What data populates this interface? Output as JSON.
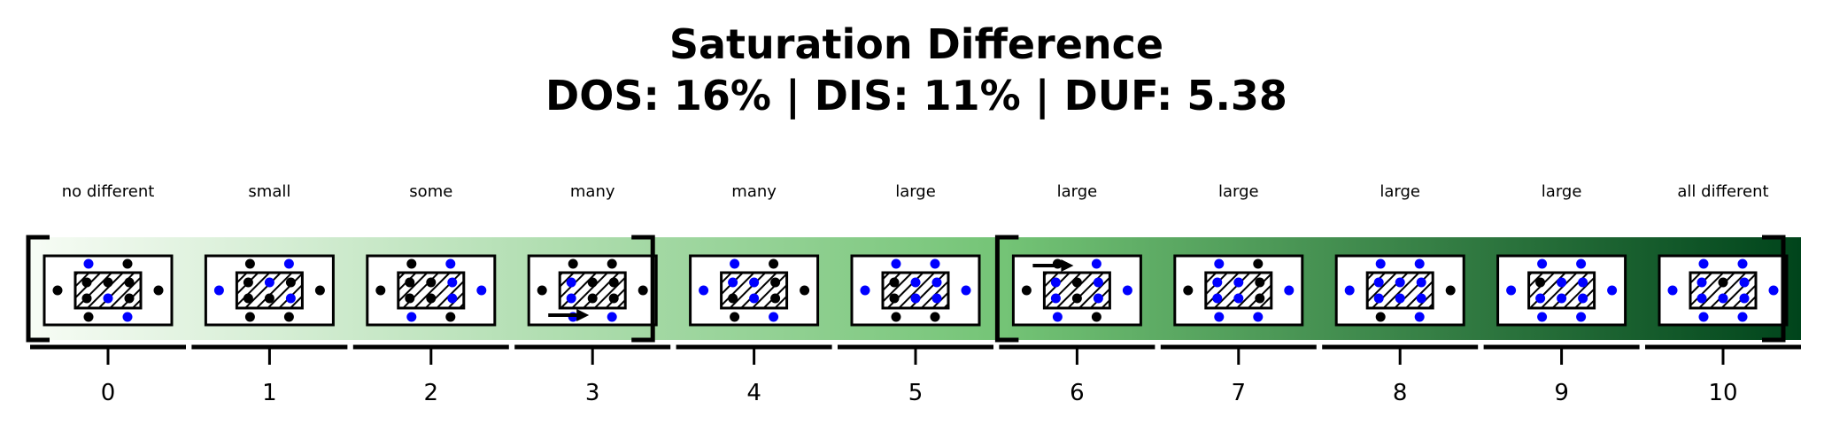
{
  "title": {
    "line1": "Saturation Difference",
    "line2": "DOS: 16% | DIS: 11% | DUF: 5.38"
  },
  "colors": {
    "gradient_start": "#f7fcf5",
    "gradient_mid": "#74c476",
    "gradient_end": "#00441b",
    "dot_black": "#000000",
    "dot_blue": "#0000ff"
  },
  "scale": {
    "categories": [
      {
        "value": 0,
        "tick": "0",
        "label": "no different"
      },
      {
        "value": 1,
        "tick": "1",
        "label": "small"
      },
      {
        "value": 2,
        "tick": "2",
        "label": "some"
      },
      {
        "value": 3,
        "tick": "3",
        "label": "many"
      },
      {
        "value": 4,
        "tick": "4",
        "label": "many"
      },
      {
        "value": 5,
        "tick": "5",
        "label": "large"
      },
      {
        "value": 6,
        "tick": "6",
        "label": "large"
      },
      {
        "value": 7,
        "tick": "7",
        "label": "large"
      },
      {
        "value": 8,
        "tick": "8",
        "label": "large"
      },
      {
        "value": 9,
        "tick": "9",
        "label": "large"
      },
      {
        "value": 10,
        "tick": "10",
        "label": "all different"
      }
    ],
    "brackets": [
      {
        "name": "left-range",
        "from": 0,
        "to": 3
      },
      {
        "name": "right-range",
        "from": 6,
        "to": 10
      }
    ],
    "arrows": [
      {
        "name": "arrow-3",
        "at": 3
      },
      {
        "name": "arrow-6",
        "at": 6
      }
    ]
  }
}
